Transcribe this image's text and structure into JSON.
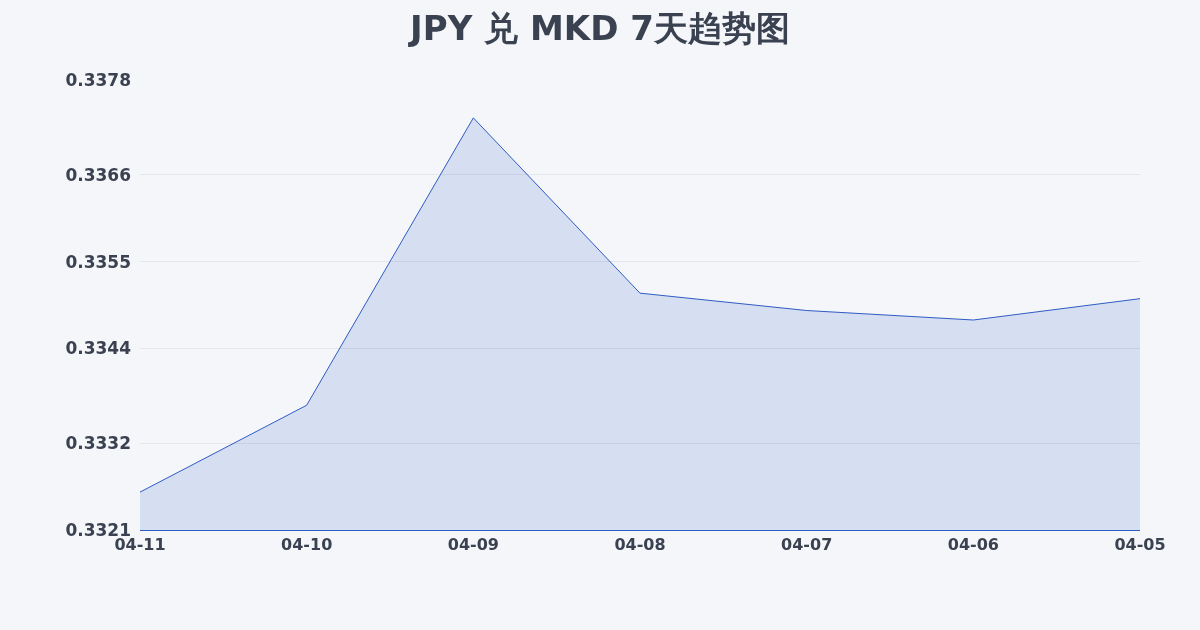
{
  "chart_data": {
    "type": "area",
    "title": "JPY 兑 MKD 7天趋势图",
    "categories": [
      "04-11",
      "04-10",
      "04-09",
      "04-08",
      "04-07",
      "04-06",
      "04-05"
    ],
    "series": [
      {
        "color": "#2f5bc4",
        "values": [
          0.33258,
          0.33368,
          0.33732,
          0.3351,
          0.33488,
          0.33476,
          0.33503
        ]
      }
    ],
    "ylim": [
      0.3321,
      0.3378
    ],
    "yticks": [
      0.3321,
      0.3332,
      0.3344,
      0.3355,
      0.3366,
      0.3378
    ],
    "grid": "y"
  }
}
